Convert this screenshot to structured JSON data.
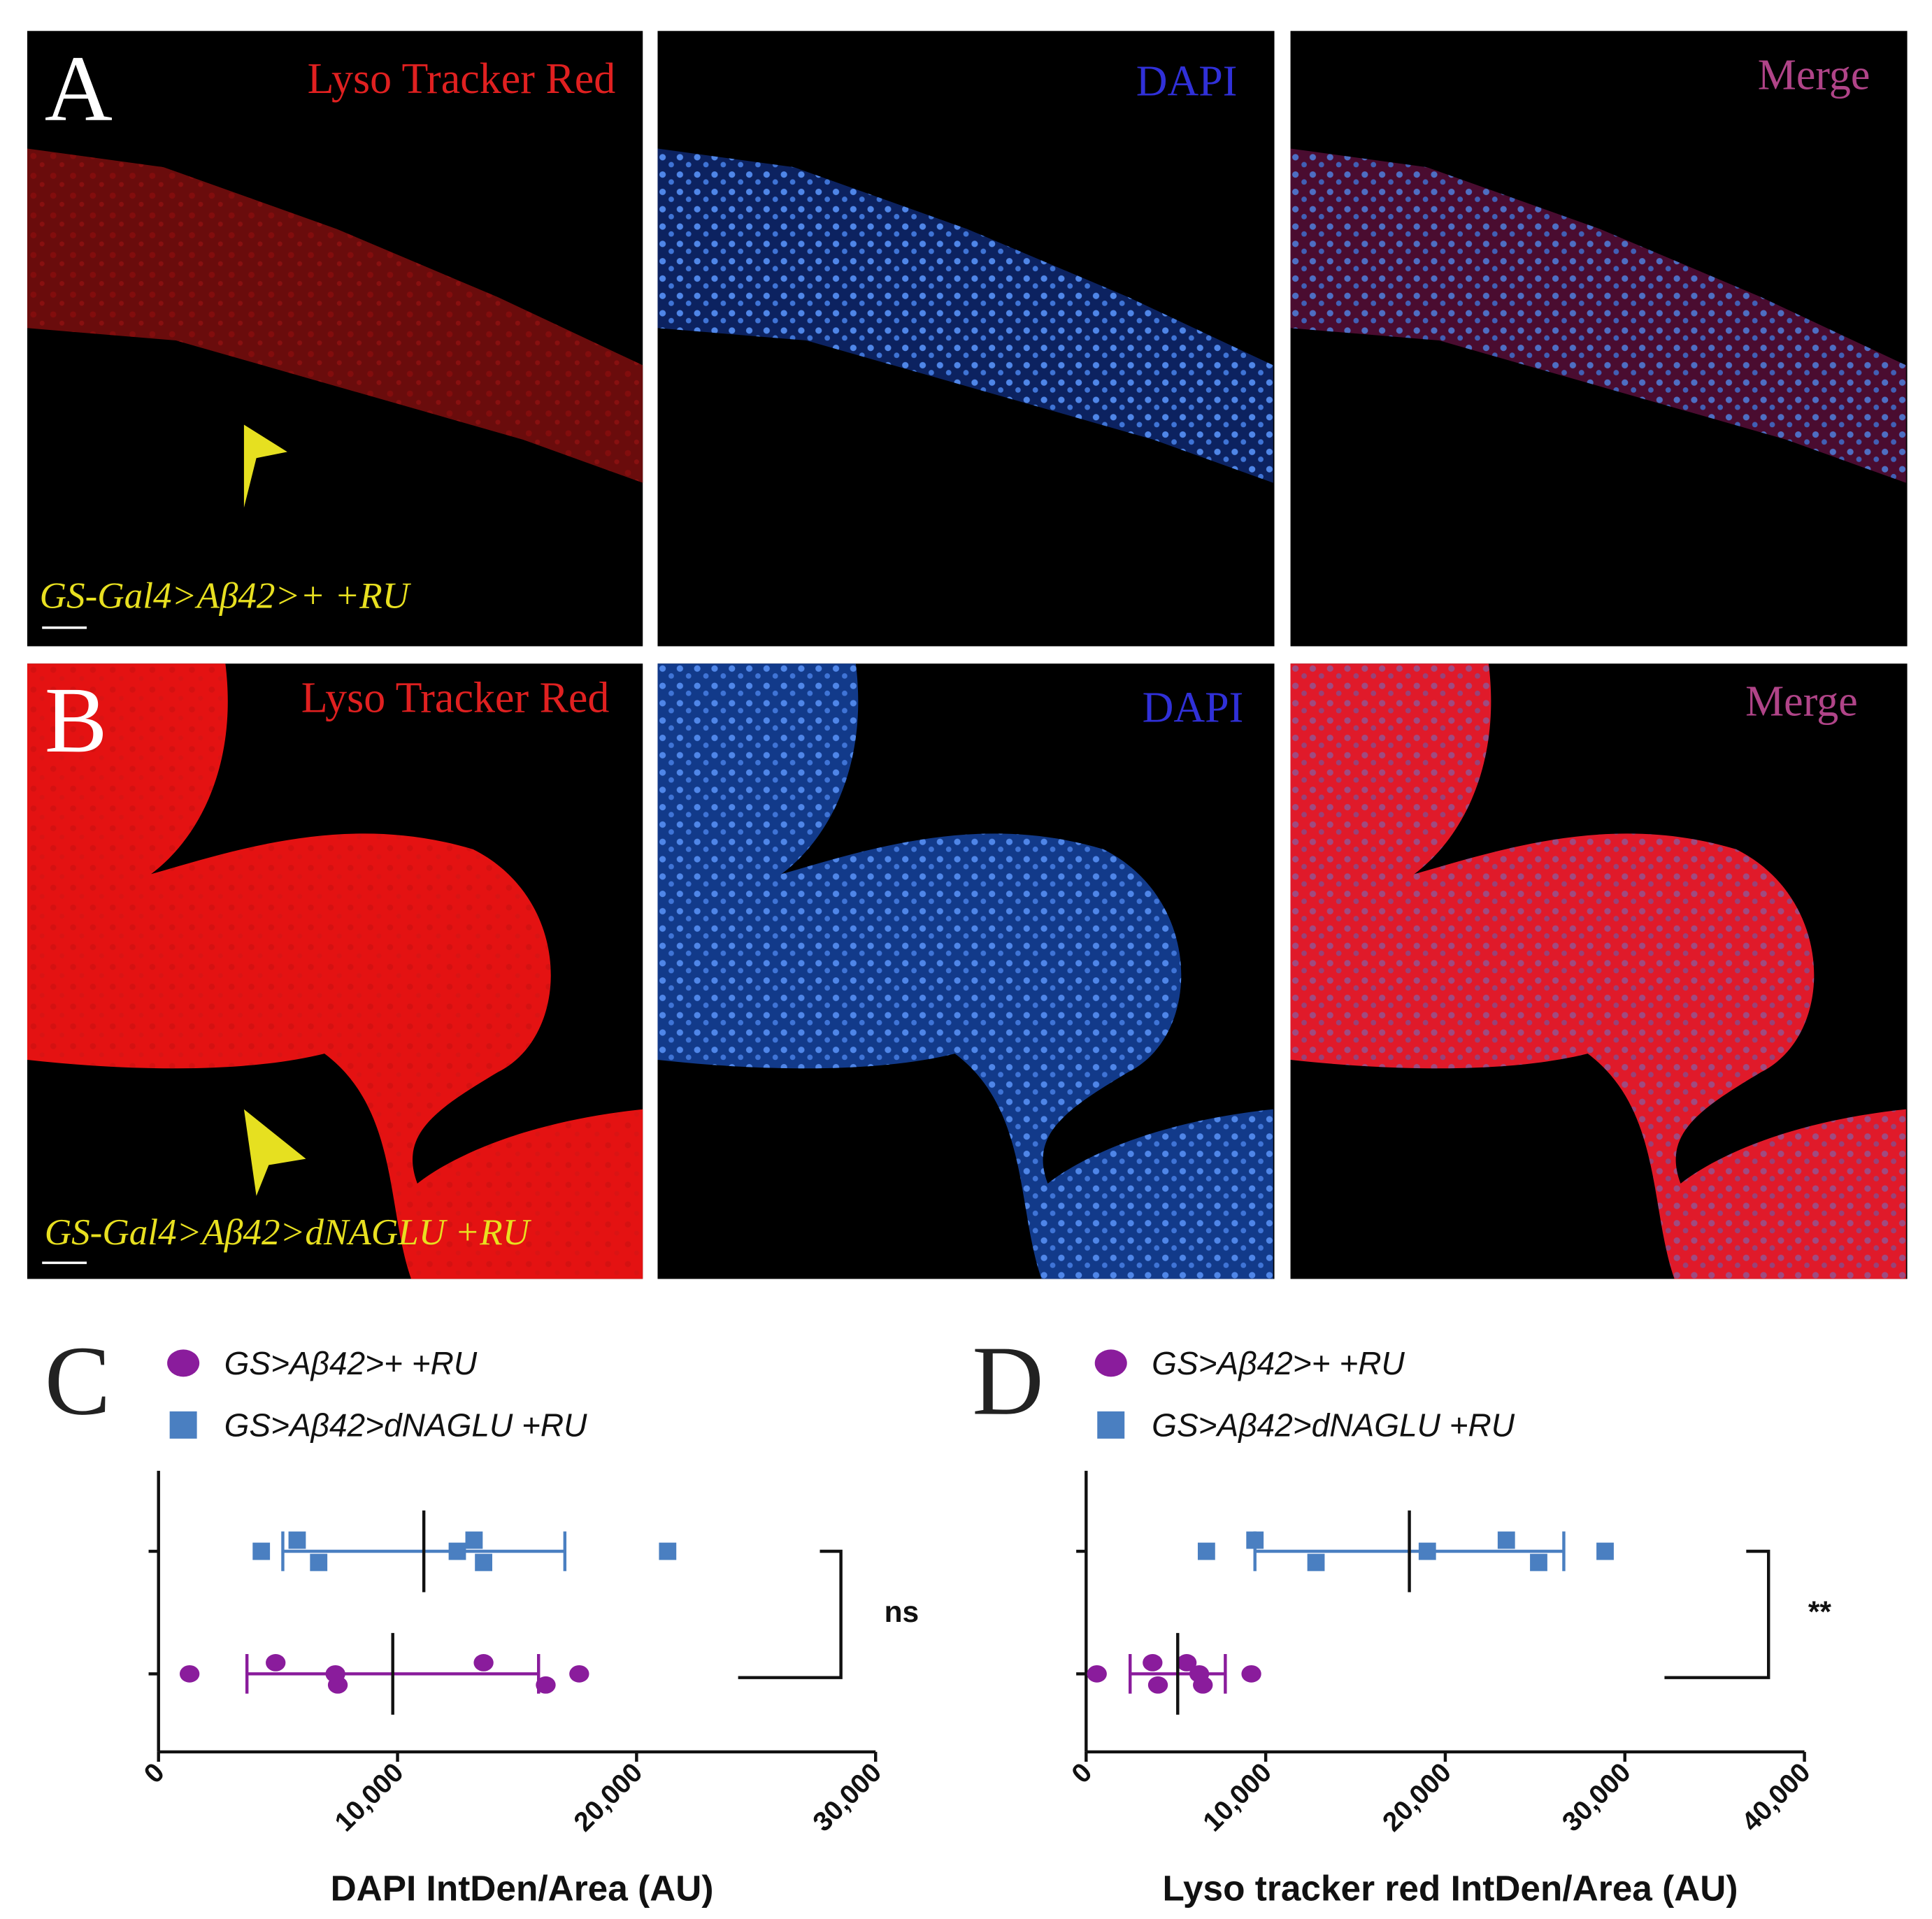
{
  "figure": {
    "panels": [
      {
        "label": "A",
        "genotype": "GS-Gal4>Aβ42>+ +RU",
        "channels": [
          "Lyso Tracker Red",
          "DAPI",
          "Merge"
        ]
      },
      {
        "label": "B",
        "genotype": "GS-Gal4>Aβ42>dNAGLU +RU",
        "channels": [
          "Lyso Tracker Red",
          "DAPI",
          "Merge"
        ]
      }
    ]
  },
  "chart_data": [
    {
      "type": "scatter",
      "panel_label": "C",
      "xlabel": "DAPI IntDen/Area (AU)",
      "xlim": [
        0,
        30000
      ],
      "xticks": [
        0,
        {
          "value": 10000,
          "label": "10,000"
        },
        {
          "value": 20000,
          "label": "20,000"
        },
        {
          "value": 30000,
          "label": "30,000"
        }
      ],
      "significance": "ns",
      "series": [
        {
          "name": "GS>Aβ42>+ +RU",
          "color": "#8a1c9c",
          "marker": "circle",
          "values": [
            1300,
            4900,
            7500,
            7400,
            13600,
            16200,
            17600
          ],
          "mean": 9800,
          "sd": 6100
        },
        {
          "name": "GS>Aβ42>dNAGLU +RU",
          "color": "#4a7fc1",
          "marker": "square",
          "values": [
            4300,
            5800,
            6700,
            12500,
            13200,
            13600,
            21300
          ],
          "mean": 11100,
          "sd": 5900
        }
      ]
    },
    {
      "type": "scatter",
      "panel_label": "D",
      "xlabel": "Lyso tracker red IntDen/Area (AU)",
      "xlim": [
        0,
        40000
      ],
      "xticks": [
        0,
        {
          "value": 10000,
          "label": "10,000"
        },
        {
          "value": 20000,
          "label": "20,000"
        },
        {
          "value": 30000,
          "label": "30,000"
        },
        {
          "value": 40000,
          "label": "40,000"
        }
      ],
      "significance": "**",
      "series": [
        {
          "name": "GS>Aβ42>+ +RU",
          "color": "#8a1c9c",
          "marker": "circle",
          "values": [
            600,
            3700,
            4000,
            6300,
            5600,
            6500,
            9200
          ],
          "mean": 5100,
          "sd": 2650
        },
        {
          "name": "GS>Aβ42>dNAGLU +RU",
          "color": "#4a7fc1",
          "marker": "square",
          "values": [
            6700,
            9400,
            12800,
            19000,
            23400,
            25200,
            28900
          ],
          "mean": 18000,
          "sd": 8600
        }
      ]
    }
  ]
}
